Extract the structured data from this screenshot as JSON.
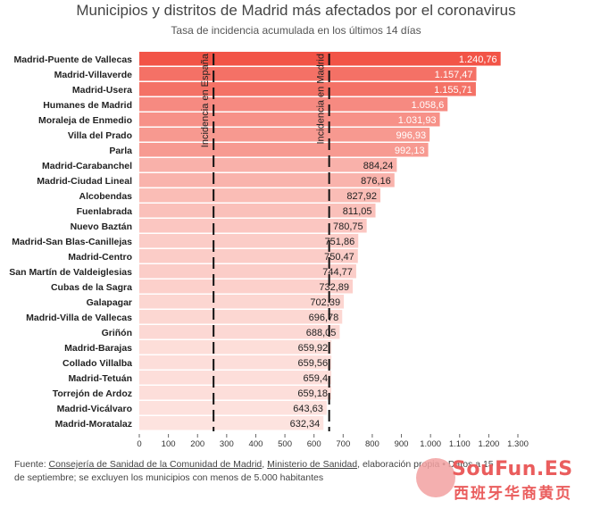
{
  "chart_data": {
    "type": "bar",
    "orientation": "horizontal",
    "title": "Municipios y distritos de Madrid más afectados por el coronavirus",
    "subtitle": "Tasa de incidencia acumulada en los últimos 14 días",
    "categories": [
      "Madrid-Puente de Vallecas",
      "Madrid-Villaverde",
      "Madrid-Usera",
      "Humanes de Madrid",
      "Moraleja de Enmedio",
      "Villa del Prado",
      "Parla",
      "Madrid-Carabanchel",
      "Madrid-Ciudad Lineal",
      "Alcobendas",
      "Fuenlabrada",
      "Nuevo Baztán",
      "Madrid-San Blas-Canillejas",
      "Madrid-Centro",
      "San Martín de Valdeiglesias",
      "Cubas de la Sagra",
      "Galapagar",
      "Madrid-Villa de Vallecas",
      "Griñón",
      "Madrid-Barajas",
      "Collado Villalba",
      "Madrid-Tetuán",
      "Torrejón de Ardoz",
      "Madrid-Vicálvaro",
      "Madrid-Moratalaz"
    ],
    "values": [
      1240.76,
      1157.47,
      1155.71,
      1058.6,
      1031.93,
      996.93,
      992.13,
      884.24,
      876.16,
      827.92,
      811.05,
      780.75,
      751.86,
      750.47,
      744.77,
      732.89,
      702.39,
      696.78,
      688.05,
      659.92,
      659.56,
      659.4,
      659.18,
      643.63,
      632.34
    ],
    "value_labels": [
      "1.240,76",
      "1.157,47",
      "1.155,71",
      "1.058,6",
      "1.031,93",
      "996,93",
      "992,13",
      "884,24",
      "876,16",
      "827,92",
      "811,05",
      "780,75",
      "751,86",
      "750,47",
      "744,77",
      "732,89",
      "702,39",
      "696,78",
      "688,05",
      "659,92",
      "659,56",
      "659,4",
      "659,18",
      "643,63",
      "632,34"
    ],
    "xlim": [
      0,
      1300
    ],
    "x_ticks": [
      0,
      100,
      200,
      300,
      400,
      500,
      600,
      700,
      800,
      900,
      1000,
      1100,
      1200,
      1300
    ],
    "x_tick_labels": [
      "0",
      "100",
      "200",
      "300",
      "400",
      "500",
      "600",
      "700",
      "800",
      "900",
      "1.000",
      "1.100",
      "1.200",
      "1.300"
    ],
    "grid": false,
    "reference_lines": [
      {
        "label": "Incidencia en España",
        "value": 255
      },
      {
        "label": "Incidencia en Madrid",
        "value": 652
      }
    ],
    "colors": {
      "bar_strong": "#f25447",
      "bar_light": "#fde3df",
      "label_light": "#ffffff",
      "label_dark": "#222222"
    }
  },
  "source": {
    "prefix": "Fuente: ",
    "link1": "Consejería de Sanidad de la Comunidad de Madrid",
    "sep": ", ",
    "link2": "Ministerio de Sanidad",
    "rest": ", elaboración propia • Datos a 15 de septiembre; se excluyen los municipios con menos de 5.000 habitantes"
  },
  "watermark": {
    "brand": "SouFun.ES",
    "chinese": "西班牙华商黄页",
    "logo_icon": "dots-logo-icon"
  }
}
